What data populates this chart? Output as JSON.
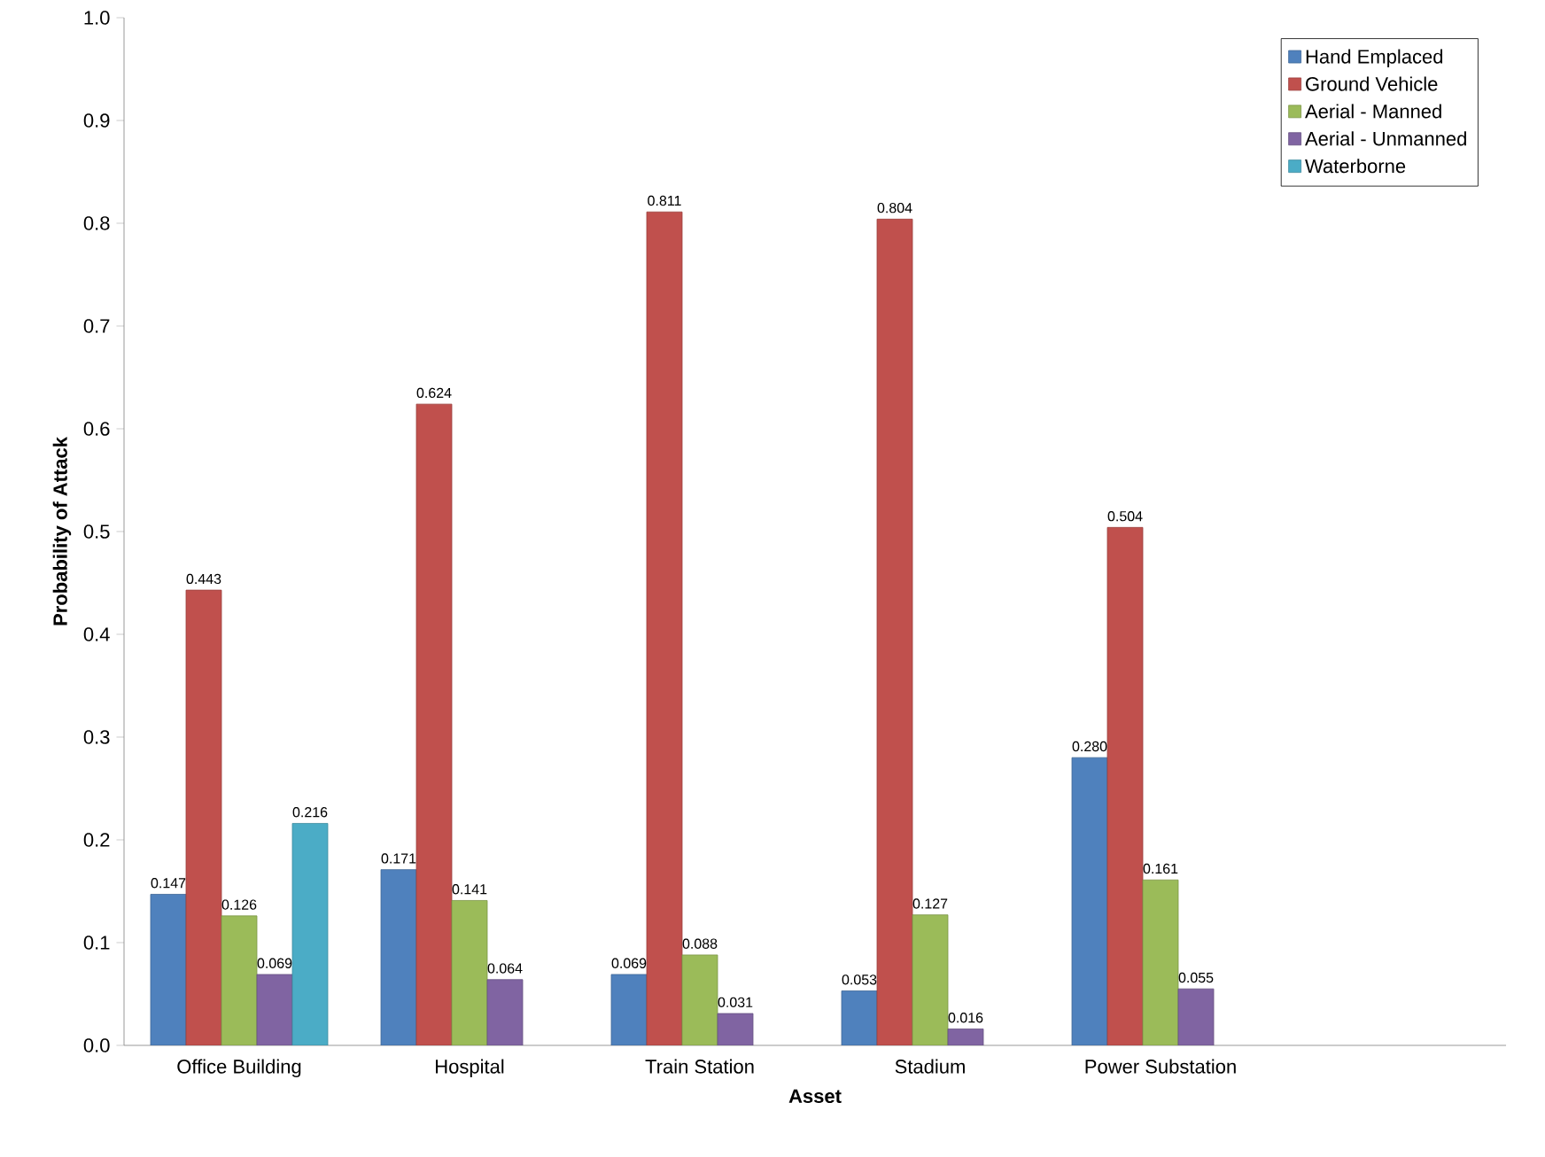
{
  "chart_data": {
    "type": "bar",
    "xlabel": "Asset",
    "ylabel": "Probability of Attack",
    "categories": [
      "Office Building",
      "Hospital",
      "Train Station",
      "Stadium",
      "Power Substation",
      null
    ],
    "series": [
      {
        "name": "Hand Emplaced",
        "color": "#4f81bd",
        "values": [
          0.147,
          0.171,
          0.069,
          0.053,
          0.28,
          null
        ],
        "value_labels": [
          "0.147",
          "0.171",
          "0.069",
          "0.053",
          "0.280",
          null
        ]
      },
      {
        "name": "Ground Vehicle",
        "color": "#c0504d",
        "values": [
          0.443,
          0.624,
          0.811,
          0.804,
          0.504,
          null
        ],
        "value_labels": [
          "0.443",
          "0.624",
          "0.811",
          "0.804",
          "0.504",
          null
        ]
      },
      {
        "name": "Aerial - Manned",
        "color": "#9bbb59",
        "values": [
          0.126,
          0.141,
          0.088,
          0.127,
          0.161,
          null
        ],
        "value_labels": [
          "0.126",
          "0.141",
          "0.088",
          "0.127",
          "0.161",
          null
        ]
      },
      {
        "name": "Aerial - Unmanned",
        "color": "#8064a2",
        "values": [
          0.069,
          0.064,
          0.031,
          0.016,
          0.055,
          null
        ],
        "value_labels": [
          "0.069",
          "0.064",
          "0.031",
          "0.016",
          "0.055",
          null
        ]
      },
      {
        "name": "Waterborne",
        "color": "#4bacc6",
        "values": [
          0.216,
          null,
          null,
          null,
          null,
          null
        ],
        "value_labels": [
          "0.216",
          null,
          null,
          null,
          null,
          null
        ]
      }
    ],
    "ylim": [
      0,
      1
    ],
    "yticks": [
      {
        "value": 0,
        "label": "0.0"
      },
      {
        "value": 0.1,
        "label": "0.1"
      },
      {
        "value": 0.2,
        "label": "0.2"
      },
      {
        "value": 0.3,
        "label": "0.3"
      },
      {
        "value": 0.4,
        "label": "0.4"
      },
      {
        "value": 0.5,
        "label": "0.5"
      },
      {
        "value": 0.6,
        "label": "0.6"
      },
      {
        "value": 0.7,
        "label": "0.7"
      },
      {
        "value": 0.8,
        "label": "0.8"
      },
      {
        "value": 0.9,
        "label": "0.9"
      },
      {
        "value": 1,
        "label": "1.0"
      }
    ],
    "legend": "top right",
    "grid": false
  }
}
